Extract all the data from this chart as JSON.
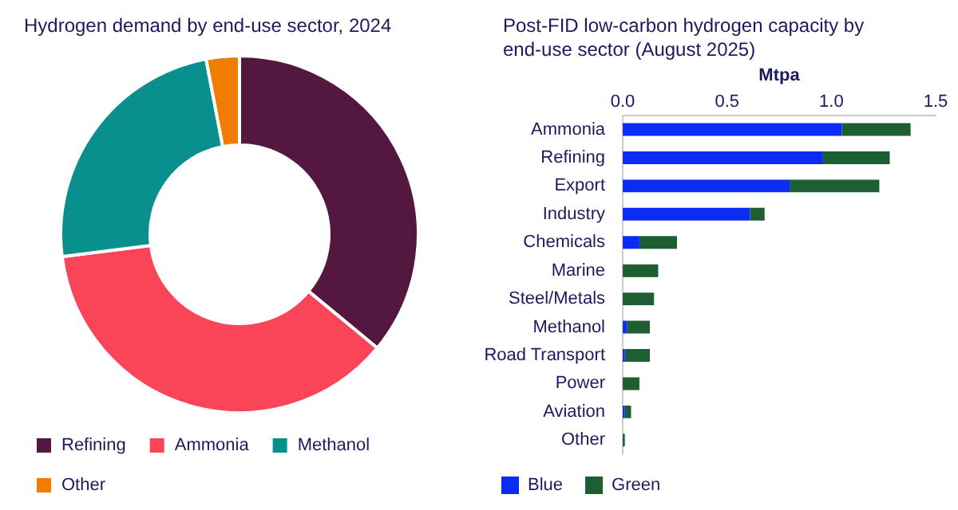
{
  "chart_data": [
    {
      "type": "donut",
      "title": "Hydrogen demand by end-use sector, 2024",
      "categories": [
        "Refining",
        "Ammonia",
        "Methanol",
        "Other"
      ],
      "values": [
        36,
        37,
        24,
        3
      ],
      "colors": [
        "#54173f",
        "#f94557",
        "#0a8f8f",
        "#f07d00"
      ],
      "legend": "bottom"
    },
    {
      "type": "bar",
      "orientation": "horizontal",
      "stacked": true,
      "title": "Post-FID low-carbon hydrogen capacity by end-use sector (August 2025)",
      "xlabel": "Mtpa",
      "categories": [
        "Ammonia",
        "Refining",
        "Export",
        "Industry",
        "Chemicals",
        "Marine",
        "Steel/Metals",
        "Methanol",
        "Road Transport",
        "Power",
        "Aviation",
        "Other"
      ],
      "xlim": [
        0,
        1.5
      ],
      "xticks": [
        {
          "value": 0,
          "label": "0.0"
        },
        {
          "value": 0.5,
          "label": "0.5"
        },
        {
          "value": 1,
          "label": "1.0"
        },
        {
          "value": 1.5,
          "label": "1.5"
        }
      ],
      "grid": false,
      "legend": "bottom",
      "series": [
        {
          "name": "Blue",
          "color": "#0a2cf5",
          "values": [
            1.05,
            0.96,
            0.8,
            0.61,
            0.08,
            0,
            0,
            0.02,
            0.01,
            0,
            0.01,
            0
          ]
        },
        {
          "name": "Green",
          "color": "#1e5e33",
          "values": [
            0.33,
            0.32,
            0.43,
            0.07,
            0.18,
            0.17,
            0.15,
            0.11,
            0.12,
            0.08,
            0.03,
            0.01
          ]
        }
      ]
    }
  ]
}
